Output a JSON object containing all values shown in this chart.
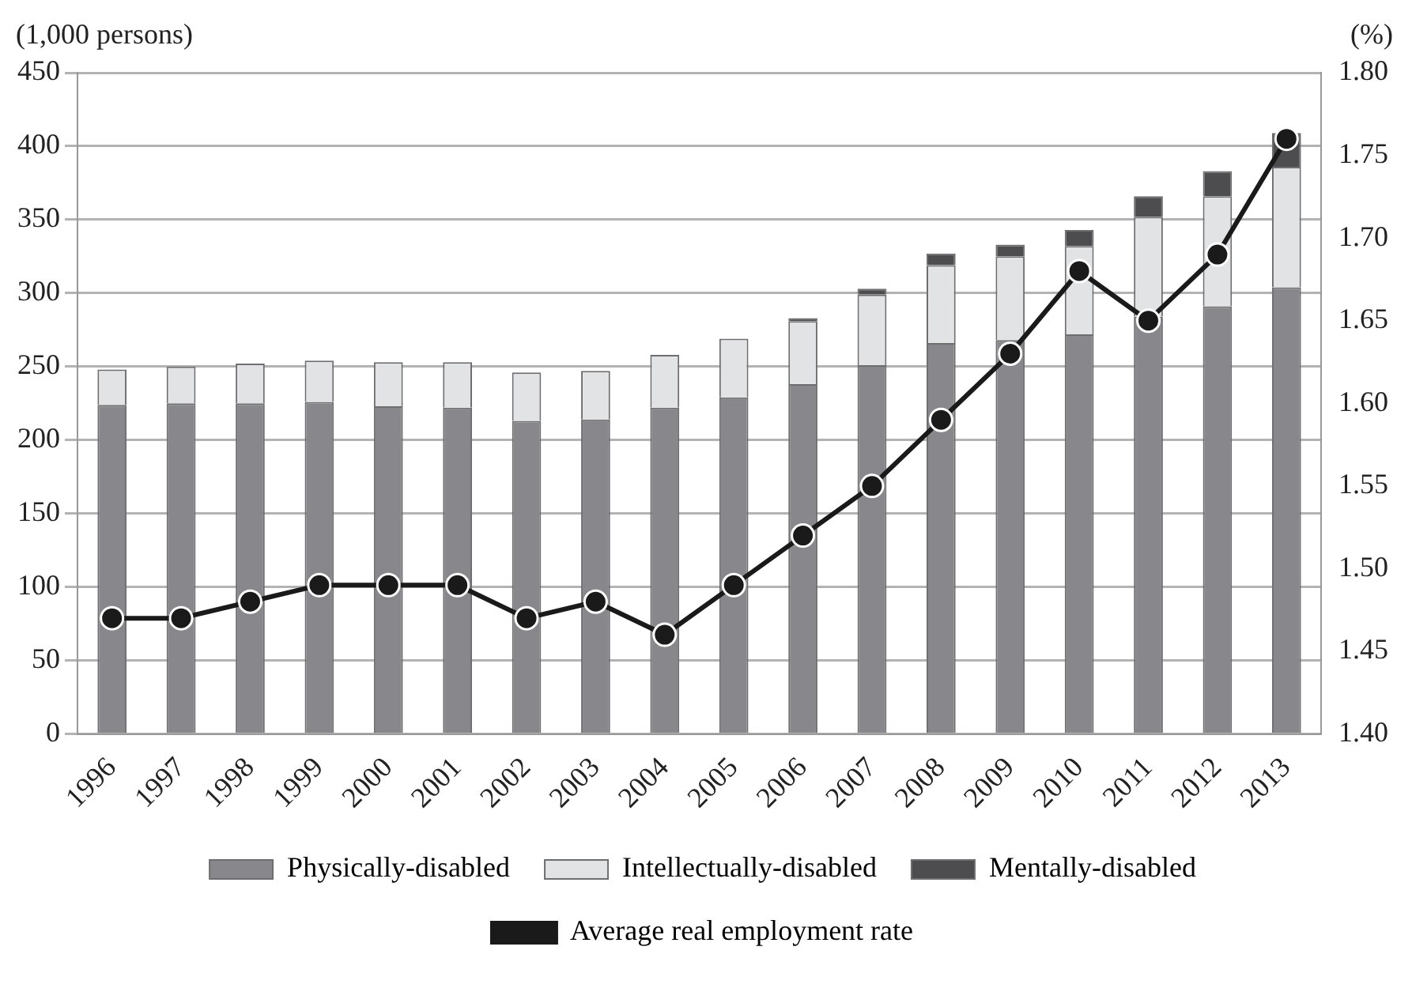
{
  "chart_data": {
    "type": "bar",
    "stacked": true,
    "ylabel": "(1,000 persons)",
    "y2label": "(%)",
    "categories": [
      "1996",
      "1997",
      "1998",
      "1999",
      "2000",
      "2001",
      "2002",
      "2003",
      "2004",
      "2005",
      "2006",
      "2007",
      "2008",
      "2009",
      "2010",
      "2011",
      "2012",
      "2013"
    ],
    "series": [
      {
        "name": "Physically-disabled",
        "color": "#88888c",
        "values": [
          224,
          225,
          225,
          226,
          223,
          222,
          213,
          214,
          222,
          229,
          238,
          251,
          266,
          268,
          272,
          284,
          291,
          304
        ]
      },
      {
        "name": "Intellectually-disabled",
        "color": "#e2e3e5",
        "values": [
          24,
          25,
          27,
          28,
          30,
          31,
          33,
          33,
          36,
          40,
          43,
          48,
          53,
          57,
          60,
          68,
          75,
          82
        ]
      },
      {
        "name": "Mentally-disabled",
        "color": "#4d4d4f",
        "values": [
          0,
          0,
          0,
          0,
          0,
          0,
          0,
          0,
          0,
          0,
          2,
          4,
          8,
          8,
          11,
          14,
          17,
          23
        ]
      },
      {
        "name": "Average real employment rate",
        "type": "line",
        "axis": "y2",
        "color": "#1a1a1a",
        "values": [
          1.47,
          1.47,
          1.48,
          1.49,
          1.49,
          1.49,
          1.47,
          1.48,
          1.46,
          1.49,
          1.52,
          1.55,
          1.59,
          1.63,
          1.68,
          1.65,
          1.69,
          1.76
        ]
      }
    ],
    "ylim": [
      0,
      450
    ],
    "yticks": [
      0,
      50,
      100,
      150,
      200,
      250,
      300,
      350,
      400,
      450
    ],
    "y2lim": [
      1.4,
      1.8
    ],
    "y2ticks": [
      {
        "value": 1.4,
        "label": "1.40"
      },
      {
        "value": 1.45,
        "label": "1.45"
      },
      {
        "value": 1.5,
        "label": "1.50"
      },
      {
        "value": 1.55,
        "label": "1.55"
      },
      {
        "value": 1.6,
        "label": "1.60"
      },
      {
        "value": 1.65,
        "label": "1.65"
      },
      {
        "value": 1.7,
        "label": "1.70"
      },
      {
        "value": 1.75,
        "label": "1.75"
      },
      {
        "value": 1.8,
        "label": "1.80"
      }
    ],
    "grid": "y",
    "legend": "bottom",
    "marker": "circle"
  }
}
